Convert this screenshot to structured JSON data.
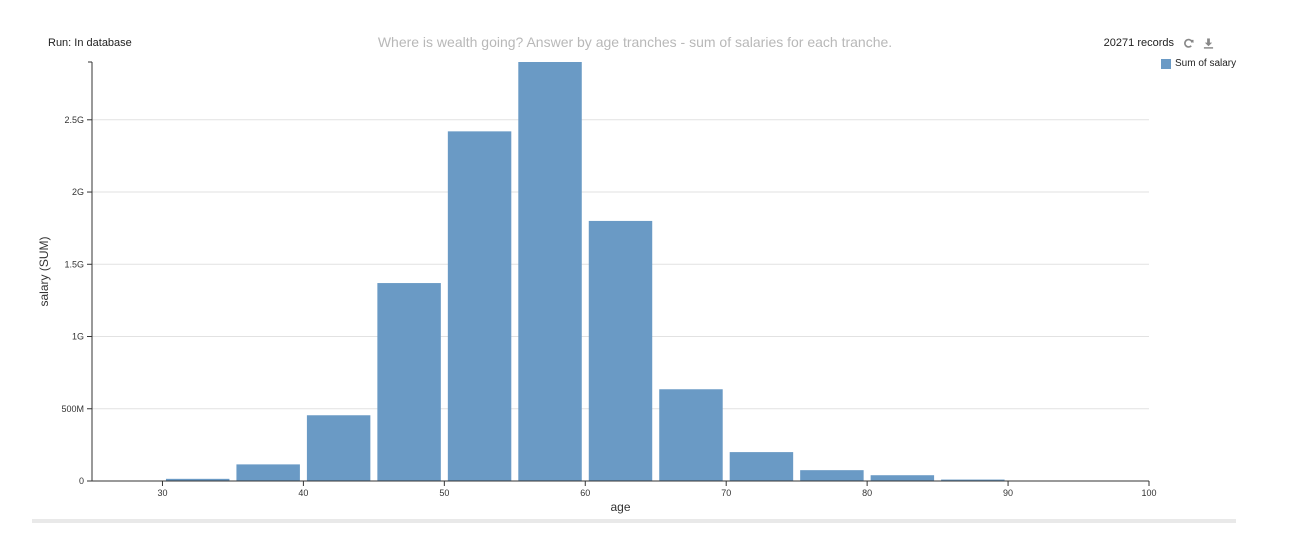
{
  "header": {
    "run_label": "Run: In database",
    "title": "Where is wealth going? Answer by age tranches - sum of salaries for each tranche.",
    "records": "20271 records"
  },
  "icons": {
    "refresh": "refresh-icon",
    "download": "download-icon"
  },
  "colors": {
    "bar": "#6a9ac5",
    "grid": "#e2e2e2",
    "axis": "#333333"
  },
  "chart_data": {
    "type": "bar",
    "xlabel": "age",
    "ylabel": "salary (SUM)",
    "xlim": [
      25,
      100
    ],
    "ylim": [
      0,
      2900000000
    ],
    "x_ticks": [
      30,
      40,
      50,
      60,
      70,
      80,
      90,
      100
    ],
    "x_tick_labels": [
      "30",
      "40",
      "50",
      "60",
      "70",
      "80",
      "90",
      "100"
    ],
    "y_ticks": [
      0,
      500000000,
      1000000000,
      1500000000,
      2000000000,
      2500000000
    ],
    "y_tick_labels": [
      "0",
      "500M",
      "1G",
      "1.5G",
      "2G",
      "2.5G"
    ],
    "grid": true,
    "legend_position": "top-right",
    "series": [
      {
        "name": "Sum of salary",
        "bins": [
          {
            "start": 25,
            "end": 30,
            "value": 1000000
          },
          {
            "start": 30,
            "end": 35,
            "value": 15000000
          },
          {
            "start": 35,
            "end": 40,
            "value": 115000000
          },
          {
            "start": 40,
            "end": 45,
            "value": 455000000
          },
          {
            "start": 45,
            "end": 50,
            "value": 1370000000
          },
          {
            "start": 50,
            "end": 55,
            "value": 2420000000
          },
          {
            "start": 55,
            "end": 60,
            "value": 2900000000
          },
          {
            "start": 60,
            "end": 65,
            "value": 1800000000
          },
          {
            "start": 65,
            "end": 70,
            "value": 635000000
          },
          {
            "start": 70,
            "end": 75,
            "value": 200000000
          },
          {
            "start": 75,
            "end": 80,
            "value": 75000000
          },
          {
            "start": 80,
            "end": 85,
            "value": 40000000
          },
          {
            "start": 85,
            "end": 90,
            "value": 10000000
          },
          {
            "start": 90,
            "end": 95,
            "value": 3000000
          },
          {
            "start": 95,
            "end": 100,
            "value": 2000000
          }
        ]
      }
    ]
  }
}
